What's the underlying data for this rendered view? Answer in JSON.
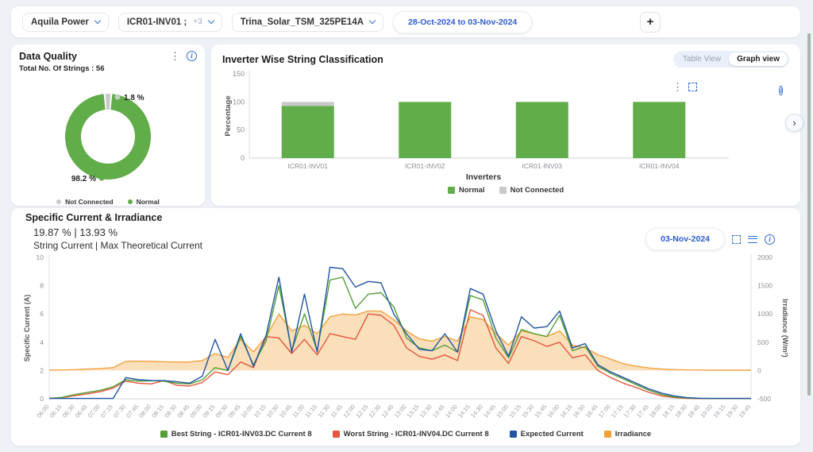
{
  "topbar": {
    "plant_dropdown": "Aquila Power",
    "inverter_dropdown": "ICR01-INV01 ;",
    "inverter_extra": "+3",
    "module_dropdown": "Trina_Solar_TSM_325PE14A",
    "date_range": "28-Oct-2024 to 03-Nov-2024",
    "add_button": "+"
  },
  "data_quality": {
    "title": "Data Quality",
    "subtitle": "Total No. Of Strings : 56",
    "chart_data": {
      "type": "pie",
      "labels": [
        "Not Connected",
        "Normal"
      ],
      "values": [
        1.8,
        98.2
      ],
      "colors": [
        "#c9c9c9",
        "#61ad49"
      ],
      "annotations": [
        "1.8 %",
        "98.2 %"
      ]
    }
  },
  "inverter_chart": {
    "title": "Inverter Wise String Classification",
    "toggle": [
      "Table View",
      "Graph view"
    ],
    "active_toggle": "Graph view",
    "chart_data": {
      "type": "bar",
      "stacked": true,
      "categories": [
        "ICR01-INV01",
        "ICR01-INV02",
        "ICR01-INV03",
        "ICR01-INV04"
      ],
      "series": [
        {
          "name": "Normal",
          "color": "#61ad49",
          "values": [
            93,
            100,
            100,
            100
          ]
        },
        {
          "name": "Not Connected",
          "color": "#c9c9c9",
          "values": [
            7,
            0,
            0,
            0
          ]
        }
      ],
      "xlabel": "Inverters",
      "ylabel": "Percentage",
      "yticks": [
        0,
        50,
        100,
        150
      ],
      "ylim": [
        0,
        150
      ],
      "legend_position": "bottom"
    }
  },
  "current_chart": {
    "title": "Specific Current & Irradiance",
    "stats_values": "19.87 % | 13.93 %",
    "stats_labels": "String Current | Max Theoretical Current",
    "date_button": "03-Nov-2024",
    "chart_data": {
      "type": "line",
      "x": [
        "06:00",
        "06:15",
        "06:30",
        "06:45",
        "07:00",
        "07:15",
        "07:30",
        "07:45",
        "08:00",
        "08:15",
        "08:30",
        "08:45",
        "09:00",
        "09:15",
        "09:30",
        "09:45",
        "10:00",
        "10:15",
        "10:30",
        "10:45",
        "11:00",
        "11:15",
        "11:30",
        "11:45",
        "12:00",
        "12:15",
        "12:30",
        "12:45",
        "13:00",
        "13:15",
        "13:30",
        "13:45",
        "14:00",
        "14:15",
        "14:30",
        "14:45",
        "15:00",
        "15:15",
        "15:30",
        "15:45",
        "16:00",
        "16:15",
        "16:30",
        "16:45",
        "17:00",
        "17:15",
        "17:30",
        "17:45",
        "18:00",
        "18:15",
        "18:30",
        "18:45",
        "19:00",
        "19:15",
        "19:30",
        "19:45"
      ],
      "ylabel_left": "Specific Current (A)",
      "ylabel_right": "Irradiance (W/m²)",
      "yticks_left": [
        0,
        2,
        4,
        6,
        8,
        10
      ],
      "yticks_right": [
        -500,
        0,
        500,
        1000,
        1500,
        2000
      ],
      "ylim_left": [
        0,
        10
      ],
      "ylim_right": [
        -500,
        2000
      ],
      "series": [
        {
          "name": "Irradiance",
          "color": "#f2a23c",
          "axis": "right",
          "fill": true,
          "fill_opacity": 0.35,
          "values": [
            5,
            8,
            15,
            25,
            35,
            50,
            160,
            165,
            160,
            155,
            150,
            150,
            175,
            300,
            230,
            550,
            330,
            600,
            1000,
            700,
            800,
            650,
            950,
            1000,
            980,
            1050,
            1050,
            900,
            700,
            560,
            520,
            600,
            520,
            950,
            900,
            650,
            450,
            700,
            650,
            600,
            700,
            450,
            400,
            280,
            200,
            120,
            75,
            45,
            25,
            15,
            10,
            8,
            6,
            5,
            5,
            5
          ]
        },
        {
          "name": "Worst String - ICR01-INV04.DC Current 8",
          "color": "#e4573d",
          "axis": "left",
          "values": [
            0.02,
            0.08,
            0.22,
            0.35,
            0.5,
            0.75,
            1.25,
            1.1,
            1.05,
            1.3,
            0.95,
            0.9,
            1.15,
            1.9,
            1.7,
            2.6,
            2.2,
            4.4,
            4.3,
            3.2,
            4.2,
            3.1,
            4.6,
            4.4,
            4.2,
            6.0,
            5.9,
            5.2,
            3.6,
            3.0,
            2.8,
            3.1,
            2.7,
            6.3,
            5.9,
            3.6,
            2.5,
            4.4,
            4.1,
            3.7,
            4.0,
            2.9,
            3.1,
            2.0,
            1.5,
            1.1,
            0.8,
            0.45,
            0.2,
            0.08,
            0.03,
            0.01,
            0.01,
            0.01,
            0.01,
            0.01
          ]
        },
        {
          "name": "Best String - ICR01-INV03.DC Current 8",
          "color": "#569e38",
          "axis": "left",
          "values": [
            0.03,
            0.1,
            0.3,
            0.45,
            0.6,
            0.85,
            1.35,
            1.25,
            1.28,
            1.25,
            1.1,
            1.05,
            1.35,
            2.2,
            2.0,
            4.4,
            2.4,
            4.1,
            8.0,
            3.4,
            6.0,
            3.4,
            8.4,
            8.6,
            6.4,
            7.4,
            7.5,
            6.5,
            4.3,
            3.6,
            3.4,
            3.8,
            3.3,
            7.3,
            7.0,
            4.3,
            2.9,
            4.9,
            4.6,
            4.4,
            5.9,
            3.4,
            3.7,
            2.3,
            1.8,
            1.4,
            1.0,
            0.6,
            0.3,
            0.12,
            0.05,
            0.02,
            0.02,
            0.02,
            0.02,
            0.02
          ]
        },
        {
          "name": "Expected Current",
          "color": "#2155a3",
          "axis": "left",
          "values": [
            0.02,
            0.02,
            0.02,
            0.02,
            0.02,
            0.02,
            1.5,
            1.35,
            1.3,
            1.28,
            1.2,
            1.1,
            1.6,
            4.2,
            2.0,
            4.6,
            2.3,
            4.5,
            8.6,
            3.3,
            7.4,
            3.3,
            9.3,
            9.2,
            7.9,
            8.3,
            8.2,
            6.0,
            4.6,
            3.5,
            3.4,
            4.6,
            3.3,
            7.8,
            7.4,
            4.8,
            3.0,
            5.8,
            5.0,
            5.1,
            6.2,
            3.6,
            3.9,
            2.4,
            1.9,
            1.5,
            1.1,
            0.7,
            0.4,
            0.2,
            0.08,
            0.04,
            0.02,
            0.02,
            0.02,
            0.02
          ]
        }
      ],
      "legend_order": [
        2,
        1,
        3,
        0
      ]
    }
  },
  "misc": {
    "next_arrow": "›"
  }
}
